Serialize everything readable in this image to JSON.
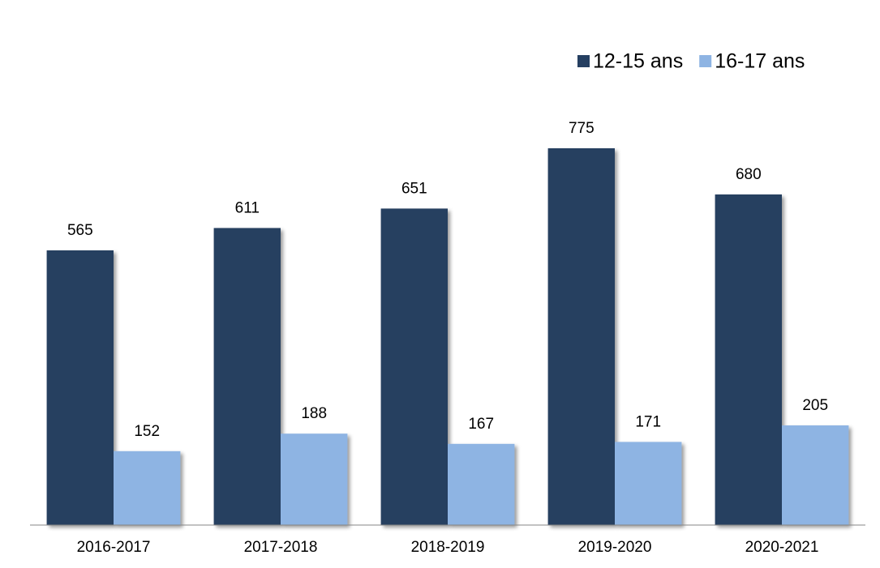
{
  "chart_data": {
    "type": "bar",
    "categories": [
      "2016-2017",
      "2017-2018",
      "2018-2019",
      "2019-2020",
      "2020-2021"
    ],
    "series": [
      {
        "name": "12-15 ans",
        "color": "#253f61",
        "values": [
          565,
          611,
          651,
          775,
          680
        ]
      },
      {
        "name": "16-17 ans",
        "color": "#8eb4e3",
        "values": [
          152,
          188,
          167,
          171,
          205
        ]
      }
    ],
    "legend": "top-right",
    "grid": false
  }
}
